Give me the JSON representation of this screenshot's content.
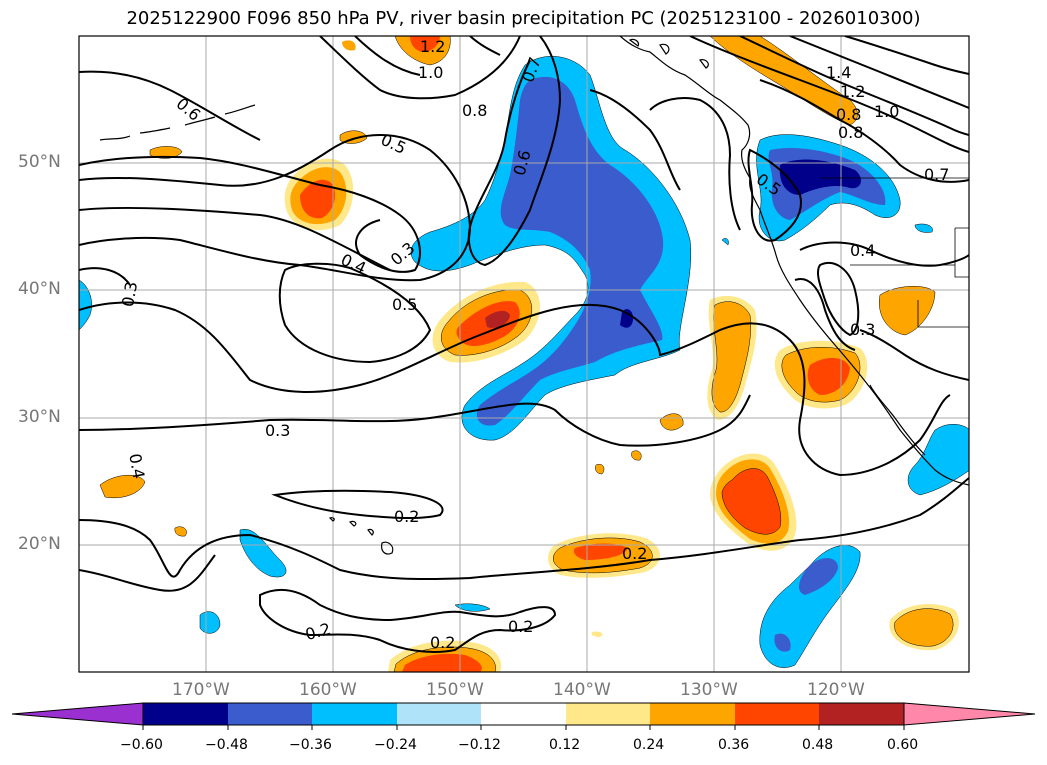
{
  "title": "2025122900 F096 850 hPa PV, river basin precipitation PC (2025123100 - 2026010300)",
  "map": {
    "lat_labels": [
      "50°N",
      "40°N",
      "30°N",
      "20°N"
    ],
    "lon_labels": [
      "170°W",
      "160°W",
      "150°W",
      "140°W",
      "130°W",
      "120°W"
    ],
    "contour_labels": [
      "1.2",
      "1.0",
      "1.4",
      "1.2",
      "1.0",
      "0.8",
      "0.8",
      "0.7",
      "0.6",
      "0.8",
      "0.6",
      "0.5",
      "0.5",
      "0.7",
      "0.4",
      "0.3",
      "0.4",
      "0.5",
      "0.3",
      "0.3",
      "0.3",
      "0.4",
      "0.2",
      "0.2",
      "0.2",
      "0.2",
      "0.2"
    ]
  },
  "colorbar": {
    "ticks": [
      "−0.60",
      "−0.48",
      "−0.36",
      "−0.24",
      "−0.12",
      "0.12",
      "0.24",
      "0.36",
      "0.48",
      "0.60"
    ],
    "colors": [
      "#9b30d0",
      "#00008b",
      "#3a5ccc",
      "#00bfff",
      "#aee3f9",
      "#ffffff",
      "#ffe88a",
      "#ffa500",
      "#ff4500",
      "#b22222",
      "#ff88aa"
    ]
  }
}
